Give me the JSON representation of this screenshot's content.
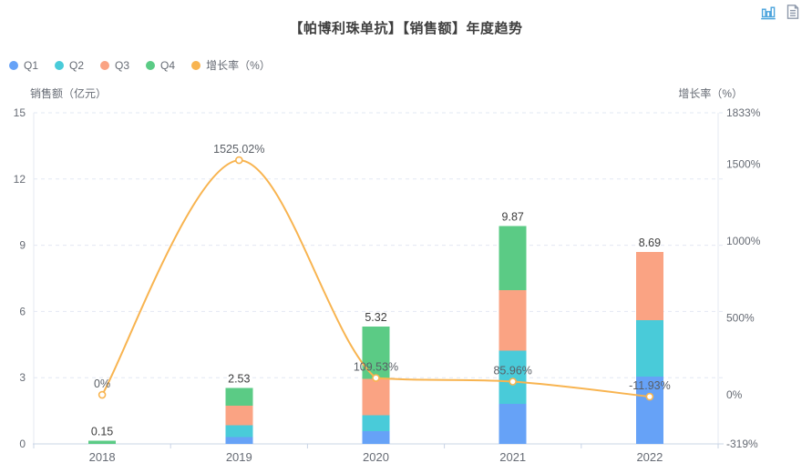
{
  "title": "【帕博利珠单抗】【销售额】年度趋势",
  "toolbox": {
    "icons": [
      {
        "name": "magic-type-bar-icon",
        "color": "#4AA3DC"
      },
      {
        "name": "data-view-icon",
        "color": "#8E99AB"
      }
    ]
  },
  "legend": {
    "items": [
      {
        "label": "Q1",
        "color": "#66A2F7"
      },
      {
        "label": "Q2",
        "color": "#49CBD9"
      },
      {
        "label": "Q3",
        "color": "#FAA383"
      },
      {
        "label": "Q4",
        "color": "#5BCB85"
      },
      {
        "label": "增长率（%）",
        "color": "#F8B450"
      }
    ]
  },
  "chart_data": {
    "type": "bar+line",
    "title": "【帕博利珠单抗】【销售额】年度趋势",
    "categories": [
      "2018",
      "2019",
      "2020",
      "2021",
      "2022"
    ],
    "series": [
      {
        "name": "Q1",
        "type": "bar",
        "stack": "sales",
        "color": "#66A2F7",
        "values": [
          0,
          0.3,
          0.58,
          1.82,
          3.05
        ]
      },
      {
        "name": "Q2",
        "type": "bar",
        "stack": "sales",
        "color": "#49CBD9",
        "values": [
          0,
          0.55,
          0.72,
          2.4,
          2.55
        ]
      },
      {
        "name": "Q3",
        "type": "bar",
        "stack": "sales",
        "color": "#FAA383",
        "values": [
          0,
          0.88,
          1.65,
          2.75,
          3.09
        ]
      },
      {
        "name": "Q4",
        "type": "bar",
        "stack": "sales",
        "color": "#5BCB85",
        "values": [
          0.15,
          0.8,
          2.37,
          2.9,
          0
        ]
      },
      {
        "name": "增长率（%）",
        "type": "line",
        "axis": "right",
        "color": "#F8B450",
        "values": [
          0,
          1525.02,
          109.53,
          85.96,
          -11.93
        ]
      }
    ],
    "bar_total_labels": [
      "0.15",
      "2.53",
      "5.32",
      "9.87",
      "8.69"
    ],
    "line_point_labels": [
      "0%",
      "1525.02%",
      "109.53%",
      "85.96%",
      "-11.93%"
    ],
    "left_axis": {
      "name": "销售额（亿元）",
      "min": 0,
      "max": 15,
      "ticks": [
        0,
        3,
        6,
        9,
        12,
        15
      ],
      "tick_labels": [
        "0",
        "3",
        "6",
        "9",
        "12",
        "15"
      ]
    },
    "right_axis": {
      "name": "增长率（%）",
      "min": -319,
      "max": 1833,
      "ticks": [
        -319,
        0,
        500,
        1000,
        1500,
        1833
      ],
      "tick_labels": [
        "-319%",
        "0%",
        "500%",
        "1000%",
        "1500%",
        "1833%"
      ]
    },
    "grid": true,
    "legend_position": "top-left",
    "colors": {
      "grid_line": "#E2E8F3",
      "axis_line": "#C9D4E6",
      "side_axis_line": "#E4E9F2",
      "tick_label": "#666B74",
      "bar_value_label": "#3D3D3D",
      "line_value_label": "#5A5F66"
    }
  }
}
